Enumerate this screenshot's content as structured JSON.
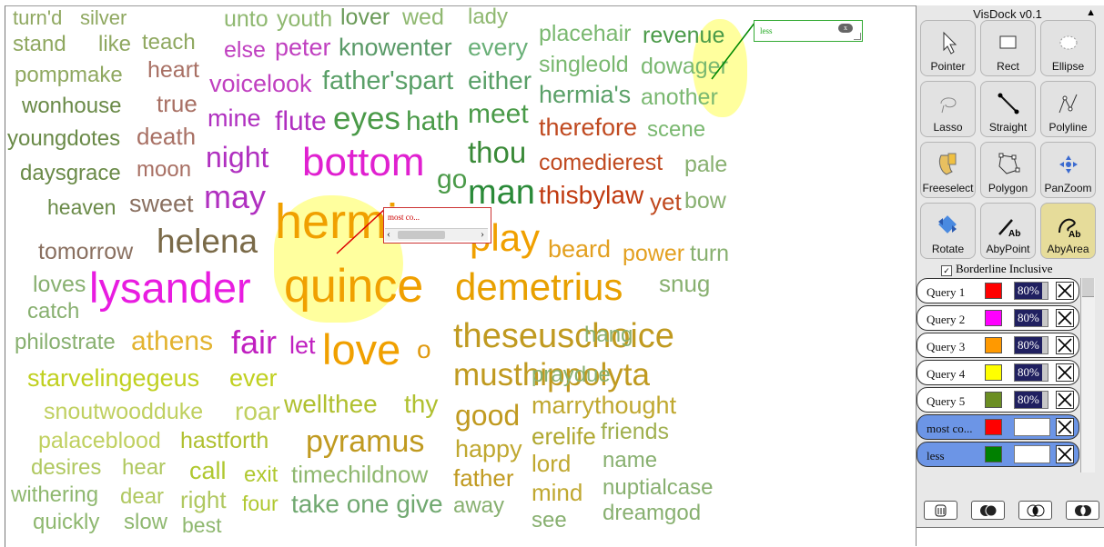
{
  "canvas": {
    "words": [
      {
        "t": "turn'd",
        "c": "#8fa860"
      },
      {
        "t": "silver",
        "c": "#8fa860"
      },
      {
        "t": "stand",
        "c": "#8fa860"
      },
      {
        "t": "like",
        "c": "#8fa860"
      },
      {
        "t": "teach",
        "c": "#8fa860"
      },
      {
        "t": "pompmake",
        "c": "#8fa860"
      },
      {
        "t": "heart",
        "c": "#a87064"
      },
      {
        "t": "wonhouse",
        "c": "#6a8a48"
      },
      {
        "t": "true",
        "c": "#a87064"
      },
      {
        "t": "youngdotes",
        "c": "#6a8a48"
      },
      {
        "t": "death",
        "c": "#a87064"
      },
      {
        "t": "daysgrace",
        "c": "#6a8a48"
      },
      {
        "t": "moon",
        "c": "#a87064"
      },
      {
        "t": "heaven",
        "c": "#6a8a48"
      },
      {
        "t": "sweet",
        "c": "#8a7060"
      },
      {
        "t": "tomorrow",
        "c": "#8a7060"
      },
      {
        "t": "helena",
        "c": "#7a6a48"
      },
      {
        "t": "loves",
        "c": "#88b070"
      },
      {
        "t": "catch",
        "c": "#88b070"
      },
      {
        "t": "lysander",
        "c": "#e81ce0"
      },
      {
        "t": "philostrate",
        "c": "#88b070"
      },
      {
        "t": "athens",
        "c": "#e3b330"
      },
      {
        "t": "fair",
        "c": "#c020c0"
      },
      {
        "t": "let",
        "c": "#c020c0"
      },
      {
        "t": "love",
        "c": "#f0a000"
      },
      {
        "t": "o",
        "c": "#e09a10"
      },
      {
        "t": "starvelingegeus",
        "c": "#c0d020"
      },
      {
        "t": "ever",
        "c": "#c0d020"
      },
      {
        "t": "snoutwoodduke",
        "c": "#c0d060"
      },
      {
        "t": "roar",
        "c": "#c0d060"
      },
      {
        "t": "wellthee",
        "c": "#b0c030"
      },
      {
        "t": "thy",
        "c": "#b0c030"
      },
      {
        "t": "palaceblood",
        "c": "#c0d060"
      },
      {
        "t": "hastforth",
        "c": "#b0c030"
      },
      {
        "t": "pyramus",
        "c": "#c09a20"
      },
      {
        "t": "desires",
        "c": "#b0c860"
      },
      {
        "t": "hear",
        "c": "#b0c860"
      },
      {
        "t": "call",
        "c": "#b0c830"
      },
      {
        "t": "exit",
        "c": "#b0c830"
      },
      {
        "t": "timechildnow",
        "c": "#8fb870"
      },
      {
        "t": "withering",
        "c": "#8fb870"
      },
      {
        "t": "dear",
        "c": "#b0c860"
      },
      {
        "t": "right",
        "c": "#b0c860"
      },
      {
        "t": "four",
        "c": "#b0c830"
      },
      {
        "t": "take one give",
        "c": "#70a870"
      },
      {
        "t": "quickly",
        "c": "#8fb870"
      },
      {
        "t": "slow",
        "c": "#8fb870"
      },
      {
        "t": "best",
        "c": "#8fb870"
      },
      {
        "t": "unto",
        "c": "#8fb870"
      },
      {
        "t": "youth",
        "c": "#8fb870"
      },
      {
        "t": "lover",
        "c": "#6a9a58"
      },
      {
        "t": "wed",
        "c": "#8fb870"
      },
      {
        "t": "lady",
        "c": "#8fb870"
      },
      {
        "t": "else",
        "c": "#c040c0"
      },
      {
        "t": "peter",
        "c": "#c040c0"
      },
      {
        "t": "knowenter",
        "c": "#5a9a68"
      },
      {
        "t": "every",
        "c": "#6ab078"
      },
      {
        "t": "voicelook",
        "c": "#c040c0"
      },
      {
        "t": "father'spart",
        "c": "#5aa068"
      },
      {
        "t": "either",
        "c": "#5aa068"
      },
      {
        "t": "mine",
        "c": "#b030c0"
      },
      {
        "t": "flute",
        "c": "#b030c0"
      },
      {
        "t": "eyes",
        "c": "#4a9a48"
      },
      {
        "t": "hath",
        "c": "#4a9a48"
      },
      {
        "t": "meet",
        "c": "#4a9a48"
      },
      {
        "t": "night",
        "c": "#b030c0"
      },
      {
        "t": "bottom",
        "c": "#e020d0"
      },
      {
        "t": "thou",
        "c": "#3a8a38"
      },
      {
        "t": "may",
        "c": "#b030c0"
      },
      {
        "t": "go",
        "c": "#4a9a48"
      },
      {
        "t": "man",
        "c": "#2a8a38"
      },
      {
        "t": "hermia",
        "c": "#f0a000"
      },
      {
        "t": "play",
        "c": "#f0a000"
      },
      {
        "t": "quince",
        "c": "#f0a000"
      },
      {
        "t": "demetrius",
        "c": "#e8a000"
      },
      {
        "t": "snug",
        "c": "#88b070"
      },
      {
        "t": "theseuschoice",
        "c": "#c09a20"
      },
      {
        "t": "hang",
        "c": "#88b070"
      },
      {
        "t": "musthippolyta",
        "c": "#c09a20"
      },
      {
        "t": "praydue",
        "c": "#88b070"
      },
      {
        "t": "good",
        "c": "#c09a20"
      },
      {
        "t": "marrythought",
        "c": "#c0a830"
      },
      {
        "t": "erelife",
        "c": "#b0a830"
      },
      {
        "t": "friends",
        "c": "#a0b050"
      },
      {
        "t": "happy",
        "c": "#c0a830"
      },
      {
        "t": "lord",
        "c": "#c0a830"
      },
      {
        "t": "name",
        "c": "#88b070"
      },
      {
        "t": "father",
        "c": "#c09a20"
      },
      {
        "t": "nuptialcase",
        "c": "#88b070"
      },
      {
        "t": "away",
        "c": "#88b070"
      },
      {
        "t": "mind",
        "c": "#c0a830"
      },
      {
        "t": "dreamgod",
        "c": "#88b070"
      },
      {
        "t": "see",
        "c": "#88b070"
      },
      {
        "t": "placehair",
        "c": "#7ab870"
      },
      {
        "t": "revenue",
        "c": "#4a9a48"
      },
      {
        "t": "singleold",
        "c": "#7ab870"
      },
      {
        "t": "dowager",
        "c": "#7ab870"
      },
      {
        "t": "hermia's",
        "c": "#5aa068"
      },
      {
        "t": "another",
        "c": "#7ab870"
      },
      {
        "t": "therefore",
        "c": "#c04a20"
      },
      {
        "t": "scene",
        "c": "#7ab870"
      },
      {
        "t": "comedierest",
        "c": "#c04a20"
      },
      {
        "t": "pale",
        "c": "#88b070"
      },
      {
        "t": "thisbylaw",
        "c": "#c03a10"
      },
      {
        "t": "yet",
        "c": "#c04a20"
      },
      {
        "t": "bow",
        "c": "#88b070"
      },
      {
        "t": "beard",
        "c": "#e3a020"
      },
      {
        "t": "power",
        "c": "#e3a020"
      },
      {
        "t": "turn",
        "c": "#88b070"
      }
    ],
    "query_box_1": {
      "label": "most co...",
      "left_arrow": "‹",
      "right_arrow": "›"
    },
    "query_box_2": {
      "label": "less"
    }
  },
  "panel": {
    "title": "VisDock v0.1",
    "collapse_icon": "▲",
    "tools": [
      {
        "label": "Pointer",
        "icon": "pointer-icon"
      },
      {
        "label": "Rect",
        "icon": "rect-icon"
      },
      {
        "label": "Ellipse",
        "icon": "ellipse-icon"
      },
      {
        "label": "Lasso",
        "icon": "lasso-icon"
      },
      {
        "label": "Straight",
        "icon": "straight-icon"
      },
      {
        "label": "Polyline",
        "icon": "polyline-icon"
      },
      {
        "label": "Freeselect",
        "icon": "freeselect-icon"
      },
      {
        "label": "Polygon",
        "icon": "polygon-icon"
      },
      {
        "label": "PanZoom",
        "icon": "panzoom-icon"
      },
      {
        "label": "Rotate",
        "icon": "rotate-icon"
      },
      {
        "label": "AbyPoint",
        "icon": "abypoint-icon"
      },
      {
        "label": "AbyArea",
        "icon": "abyarea-icon",
        "selected": true
      }
    ],
    "borderline_label": "Borderline Inclusive",
    "borderline_checked": true,
    "queries": [
      {
        "name": "Query 1",
        "color": "#ff0000",
        "opacity": "80%"
      },
      {
        "name": "Query 2",
        "color": "#ff00ff",
        "opacity": "80%"
      },
      {
        "name": "Query 3",
        "color": "#ff9900",
        "opacity": "80%"
      },
      {
        "name": "Query 4",
        "color": "#ffff00",
        "opacity": "80%"
      },
      {
        "name": "Query 5",
        "color": "#6b8e23",
        "opacity": "80%"
      },
      {
        "name": "most co...",
        "color": "#ff0000",
        "opacity": ""
      },
      {
        "name": "less",
        "color": "#008000",
        "opacity": ""
      }
    ],
    "bottom_buttons": [
      "clear-icon",
      "intersect-icon",
      "union-icon",
      "xor-icon"
    ]
  }
}
